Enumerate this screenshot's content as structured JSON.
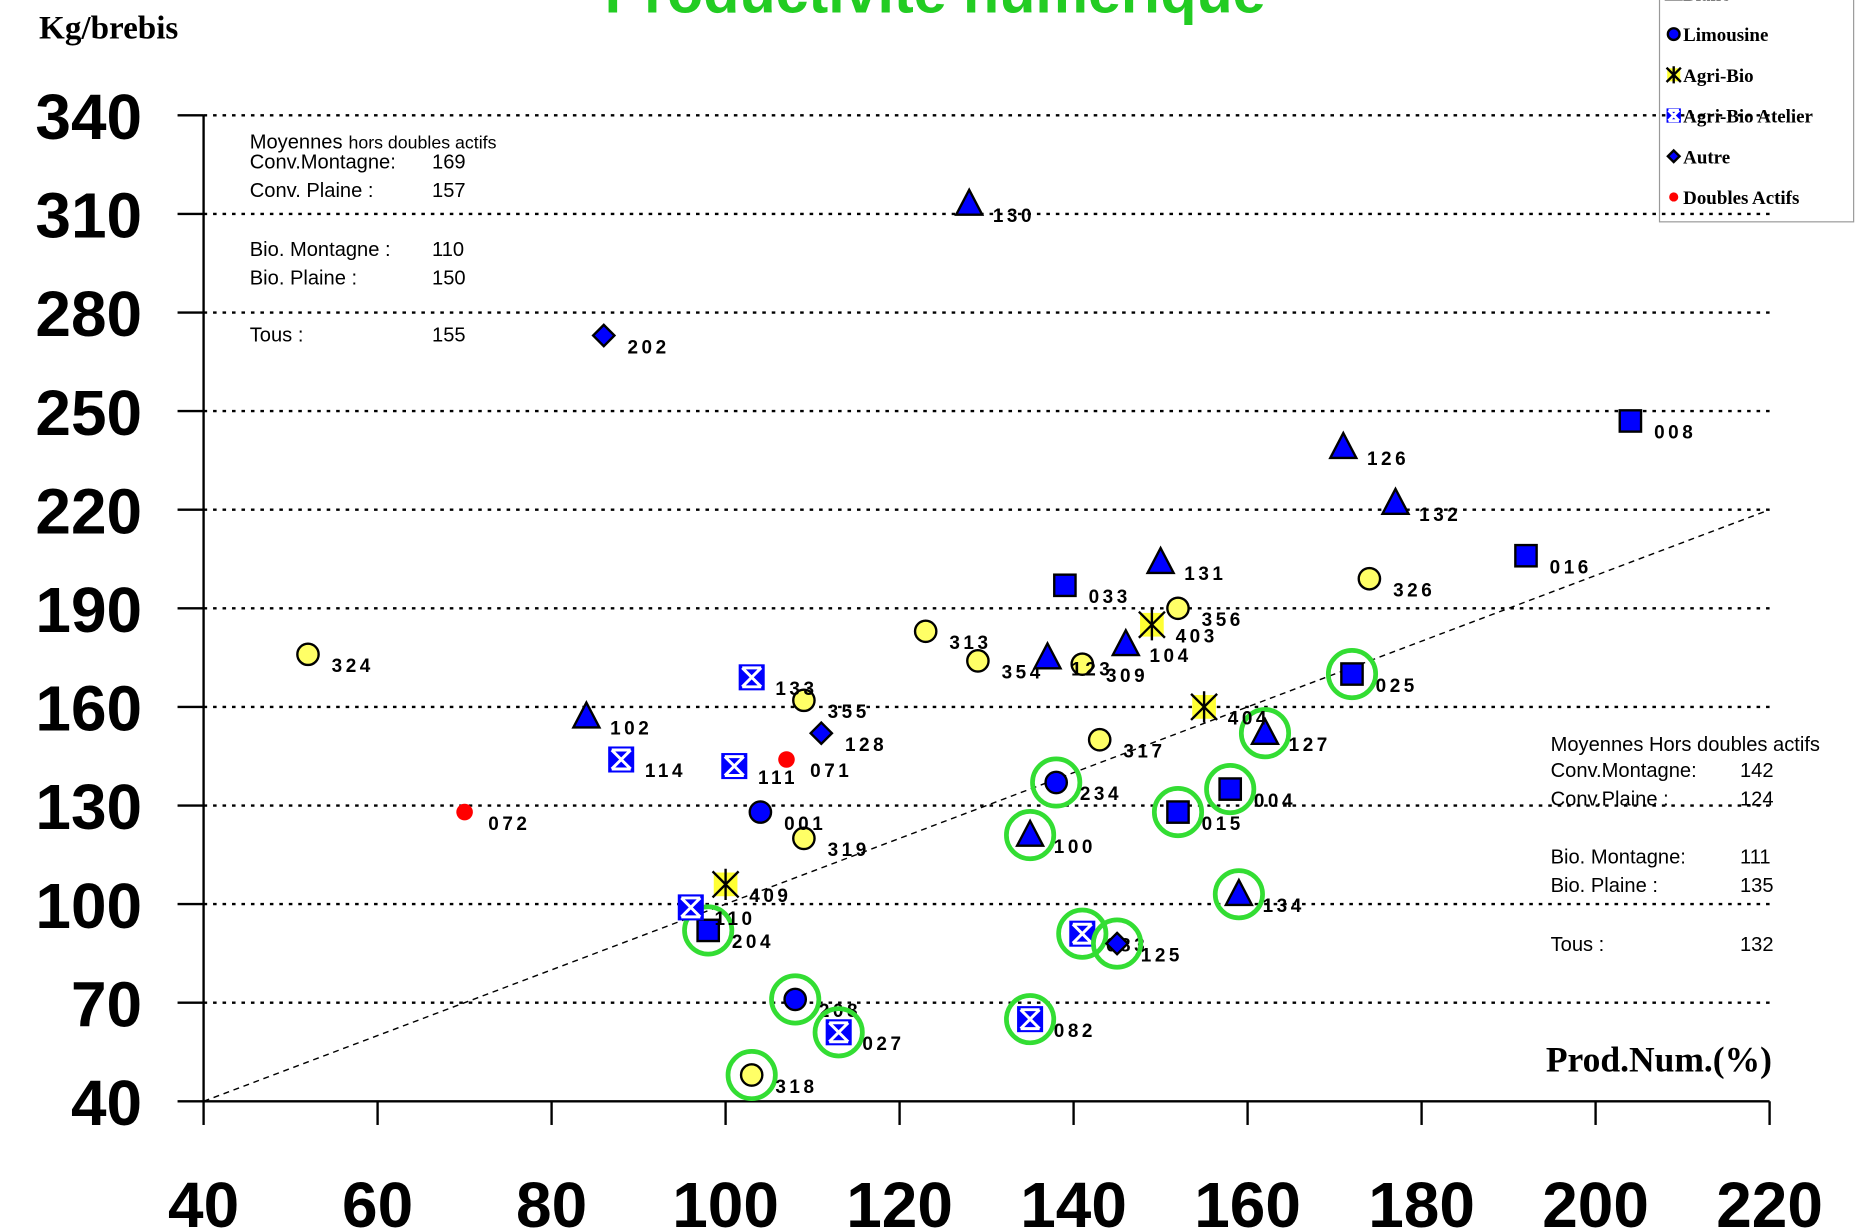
{
  "chart_data": {
    "type": "scatter",
    "title": "Productivité numérique",
    "y_label": "Kg/brebis",
    "x_label": "Prod.Num.(%)",
    "xlim": [
      40,
      220
    ],
    "xticks": [
      40,
      60,
      80,
      100,
      120,
      140,
      160,
      180,
      200,
      220
    ],
    "ylim": [
      40,
      340
    ],
    "yticks": [
      40,
      70,
      100,
      130,
      160,
      190,
      220,
      250,
      280,
      310,
      340
    ],
    "grid": true,
    "reference_line": {
      "x": [
        40,
        220
      ],
      "y": [
        40,
        220
      ]
    },
    "series": [
      {
        "marker": "square",
        "color": "#0000ff",
        "labels": [
          "008",
          "016",
          "033",
          "025",
          "004",
          "015",
          "204"
        ],
        "x": [
          204,
          192,
          139,
          172,
          158,
          152,
          98
        ],
        "y": [
          247,
          206,
          197,
          170,
          135,
          128,
          92
        ],
        "highlighted": [
          false,
          false,
          false,
          true,
          true,
          true,
          true
        ]
      },
      {
        "marker": "circle",
        "color": "#ffff66",
        "labels": [
          "326",
          "356",
          "313",
          "354",
          "309",
          "324",
          "355",
          "317",
          "319",
          "318"
        ],
        "x": [
          174,
          152,
          123,
          129,
          141,
          52,
          109,
          143,
          109,
          103
        ],
        "y": [
          199,
          190,
          183,
          174,
          173,
          176,
          162,
          150,
          120,
          48
        ],
        "highlighted": [
          false,
          false,
          false,
          false,
          false,
          false,
          false,
          false,
          false,
          true
        ]
      },
      {
        "name": "Blanc",
        "marker": "triangle",
        "color": "#0000ff",
        "labels": [
          "130",
          "126",
          "132",
          "131",
          "123",
          "104",
          "102",
          "127",
          "100",
          "134"
        ],
        "x": [
          128,
          171,
          177,
          150,
          137,
          146,
          84,
          162,
          135,
          159
        ],
        "y": [
          313,
          239,
          222,
          204,
          175,
          179,
          157,
          152,
          121,
          103
        ],
        "highlighted": [
          false,
          false,
          false,
          false,
          false,
          false,
          false,
          true,
          true,
          true
        ]
      },
      {
        "name": "Limousine",
        "marker": "circle",
        "color": "#0000ff",
        "labels": [
          "234",
          "001",
          "208"
        ],
        "x": [
          138,
          104,
          108
        ],
        "y": [
          137,
          128,
          71
        ],
        "highlighted": [
          true,
          false,
          true
        ]
      },
      {
        "name": "Agri-Bio",
        "marker": "star",
        "color": "#ffff33",
        "labels": [
          "403",
          "404",
          "409"
        ],
        "x": [
          149,
          155,
          100
        ],
        "y": [
          185,
          160,
          106
        ],
        "highlighted": [
          false,
          false,
          false
        ]
      },
      {
        "name": "Agri-Bio Atelier",
        "marker": "xsquare",
        "color": "#0000ff",
        "labels": [
          "133",
          "114",
          "111",
          "110",
          "083",
          "027",
          "082"
        ],
        "x": [
          103,
          88,
          101,
          96,
          141,
          113,
          135
        ],
        "y": [
          169,
          144,
          142,
          99,
          91,
          61,
          65
        ],
        "highlighted": [
          false,
          false,
          false,
          false,
          true,
          true,
          true
        ]
      },
      {
        "name": "Autre",
        "marker": "diamond",
        "color": "#0000ff",
        "labels": [
          "202",
          "128",
          "125"
        ],
        "x": [
          86,
          111,
          145
        ],
        "y": [
          273,
          152,
          88
        ],
        "highlighted": [
          false,
          false,
          true
        ]
      },
      {
        "name": "Doubles Actifs",
        "marker": "dot",
        "color": "#ff0000",
        "labels": [
          "071",
          "072"
        ],
        "x": [
          107,
          70
        ],
        "y": [
          144,
          128
        ],
        "highlighted": [
          false,
          false
        ]
      }
    ],
    "annotations": [
      {
        "title": "Moyennes",
        "subtitle": "hors doubles actifs",
        "rows": [
          [
            "Conv.Montagne:",
            169
          ],
          [
            "Conv. Plaine :",
            157
          ],
          [
            "Bio. Montagne :",
            110
          ],
          [
            "Bio. Plaine :",
            150
          ],
          [
            "Tous :",
            155
          ]
        ]
      },
      {
        "title": "Moyennes Hors doubles actifs",
        "rows": [
          [
            "Conv.Montagne:",
            142
          ],
          [
            "Conv.Plaine :",
            124
          ],
          [
            "Bio. Montagne:",
            111
          ],
          [
            "Bio. Plaine :",
            135
          ],
          [
            "Tous :",
            132
          ]
        ]
      }
    ]
  }
}
